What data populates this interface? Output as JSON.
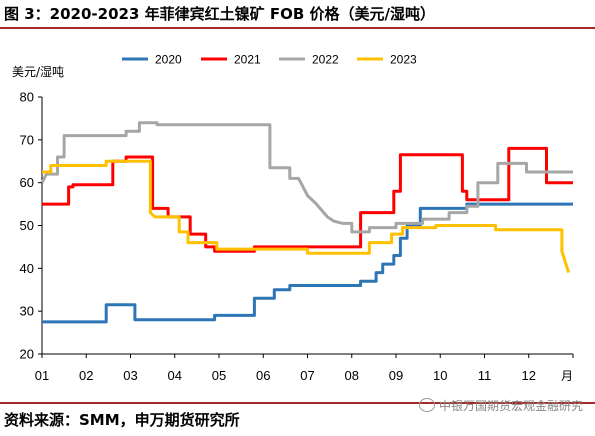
{
  "page": {
    "title": "图 3：2020-2023 年菲律宾红土镍矿 FOB 价格（美元/湿吨）",
    "source": "资料来源：SMM，申万期货研究所",
    "watermark": "中银万国期货宏观金融研究"
  },
  "chart_data": {
    "type": "line",
    "ylabel": "美元/湿吨",
    "xlabel": "月",
    "ylim": [
      20,
      80
    ],
    "y_ticks": [
      "20",
      "30",
      "40",
      "50",
      "60",
      "70",
      "80"
    ],
    "x_ticks": [
      "01",
      "02",
      "03",
      "04",
      "05",
      "06",
      "07",
      "08",
      "09",
      "10",
      "11",
      "12"
    ],
    "xlim": [
      1,
      13
    ],
    "grid": false,
    "legend_position": "top",
    "series": [
      {
        "name": "2020",
        "color": "#2e75b6",
        "points": [
          [
            1.0,
            27.5
          ],
          [
            2.45,
            27.5
          ],
          [
            2.45,
            31.5
          ],
          [
            3.1,
            31.5
          ],
          [
            3.1,
            28
          ],
          [
            4.9,
            28
          ],
          [
            4.9,
            29
          ],
          [
            5.8,
            29
          ],
          [
            5.8,
            33
          ],
          [
            6.25,
            33
          ],
          [
            6.25,
            35
          ],
          [
            6.6,
            35
          ],
          [
            6.6,
            36
          ],
          [
            8.2,
            36
          ],
          [
            8.2,
            37
          ],
          [
            8.55,
            37
          ],
          [
            8.55,
            39
          ],
          [
            8.7,
            39
          ],
          [
            8.7,
            41
          ],
          [
            8.95,
            41
          ],
          [
            8.95,
            43
          ],
          [
            9.1,
            43
          ],
          [
            9.1,
            47
          ],
          [
            9.25,
            47
          ],
          [
            9.25,
            50
          ],
          [
            9.55,
            50
          ],
          [
            9.55,
            54
          ],
          [
            10.6,
            54
          ],
          [
            10.6,
            55
          ],
          [
            13.0,
            55
          ]
        ]
      },
      {
        "name": "2021",
        "color": "#ff0000",
        "points": [
          [
            1.0,
            55
          ],
          [
            1.6,
            55
          ],
          [
            1.6,
            59
          ],
          [
            1.7,
            59
          ],
          [
            1.7,
            59.5
          ],
          [
            2.6,
            59.5
          ],
          [
            2.6,
            65
          ],
          [
            2.9,
            65
          ],
          [
            2.9,
            66
          ],
          [
            3.5,
            66
          ],
          [
            3.5,
            54
          ],
          [
            3.85,
            54
          ],
          [
            3.85,
            52
          ],
          [
            4.35,
            52
          ],
          [
            4.35,
            48
          ],
          [
            4.7,
            48
          ],
          [
            4.7,
            45
          ],
          [
            4.9,
            45
          ],
          [
            4.9,
            44
          ],
          [
            5.8,
            44
          ],
          [
            5.8,
            45
          ],
          [
            8.2,
            45
          ],
          [
            8.2,
            53
          ],
          [
            8.95,
            53
          ],
          [
            8.95,
            58
          ],
          [
            9.1,
            58
          ],
          [
            9.1,
            66.5
          ],
          [
            10.5,
            66.5
          ],
          [
            10.5,
            58
          ],
          [
            10.6,
            58
          ],
          [
            10.6,
            56
          ],
          [
            11.55,
            56
          ],
          [
            11.55,
            68
          ],
          [
            12.4,
            68
          ],
          [
            12.4,
            60
          ],
          [
            13.0,
            60
          ]
        ]
      },
      {
        "name": "2022",
        "color": "#a6a6a6",
        "points": [
          [
            1.0,
            60
          ],
          [
            1.1,
            62
          ],
          [
            1.35,
            62
          ],
          [
            1.35,
            66
          ],
          [
            1.5,
            66
          ],
          [
            1.5,
            71
          ],
          [
            2.9,
            71
          ],
          [
            2.9,
            72
          ],
          [
            3.2,
            72
          ],
          [
            3.2,
            74
          ],
          [
            3.6,
            74
          ],
          [
            3.6,
            73.5
          ],
          [
            6.15,
            73.5
          ],
          [
            6.15,
            63.5
          ],
          [
            6.6,
            63.5
          ],
          [
            6.6,
            61
          ],
          [
            6.8,
            61
          ],
          [
            7.0,
            57
          ],
          [
            7.2,
            55
          ],
          [
            7.45,
            52
          ],
          [
            7.6,
            51
          ],
          [
            7.8,
            50.5
          ],
          [
            8.0,
            50.5
          ],
          [
            8.0,
            48.5
          ],
          [
            8.4,
            48.5
          ],
          [
            8.4,
            49.5
          ],
          [
            9.0,
            49.5
          ],
          [
            9.0,
            50.5
          ],
          [
            9.6,
            50.5
          ],
          [
            9.6,
            51.5
          ],
          [
            10.2,
            51.5
          ],
          [
            10.2,
            53
          ],
          [
            10.6,
            53
          ],
          [
            10.6,
            54.5
          ],
          [
            10.85,
            54.5
          ],
          [
            10.85,
            60
          ],
          [
            11.3,
            60
          ],
          [
            11.3,
            64.5
          ],
          [
            11.95,
            64.5
          ],
          [
            11.95,
            62.5
          ],
          [
            13.0,
            62.5
          ]
        ]
      },
      {
        "name": "2023",
        "color": "#ffc000",
        "points": [
          [
            1.0,
            62.5
          ],
          [
            1.2,
            62.5
          ],
          [
            1.2,
            64
          ],
          [
            2.45,
            64
          ],
          [
            2.45,
            65
          ],
          [
            3.45,
            65
          ],
          [
            3.45,
            53
          ],
          [
            3.55,
            52
          ],
          [
            4.1,
            52
          ],
          [
            4.1,
            48.5
          ],
          [
            4.3,
            48.5
          ],
          [
            4.3,
            46
          ],
          [
            4.95,
            46
          ],
          [
            4.95,
            44.5
          ],
          [
            7.0,
            44.5
          ],
          [
            7.0,
            43.5
          ],
          [
            8.4,
            43.5
          ],
          [
            8.4,
            46
          ],
          [
            8.9,
            46
          ],
          [
            8.9,
            48
          ],
          [
            9.15,
            48
          ],
          [
            9.15,
            49.5
          ],
          [
            9.9,
            49.5
          ],
          [
            9.9,
            50
          ],
          [
            11.25,
            50
          ],
          [
            11.25,
            49
          ],
          [
            12.75,
            49
          ],
          [
            12.75,
            44
          ],
          [
            12.9,
            39
          ]
        ]
      }
    ]
  }
}
